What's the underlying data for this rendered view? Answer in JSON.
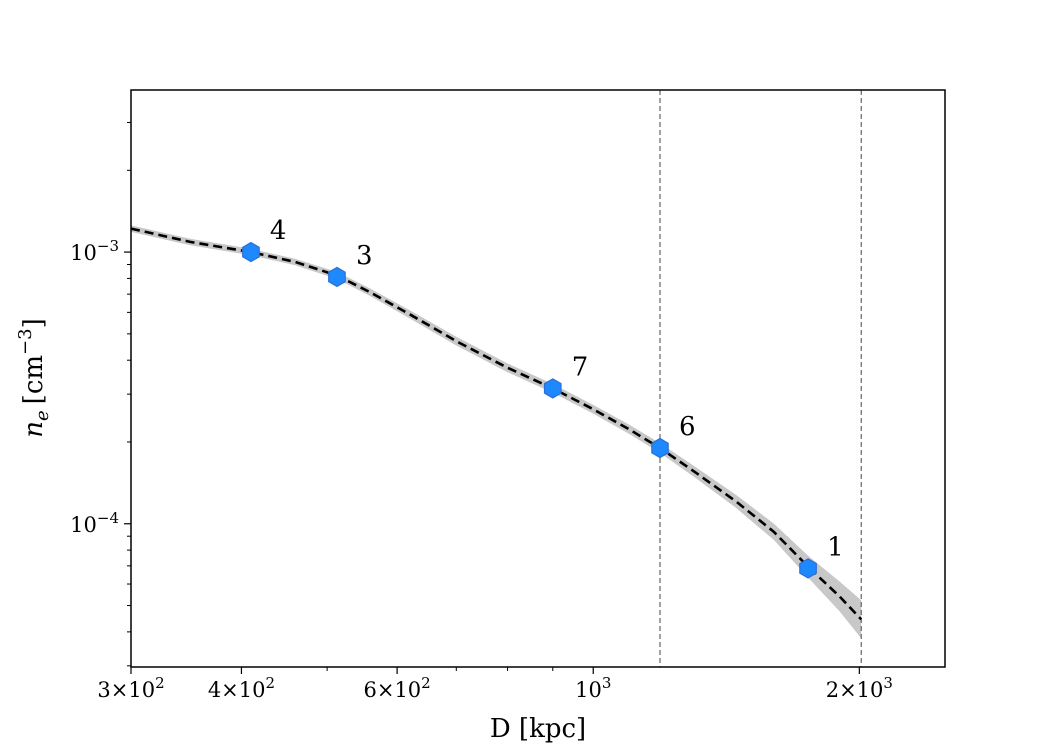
{
  "chart_data": {
    "type": "line",
    "title": "",
    "xlabel": "D [kpc]",
    "ylabel_main": "n",
    "ylabel_sub": "e",
    "ylabel_unit": "[cm",
    "ylabel_unit_exp": "−3",
    "ylabel_unit_close": "]",
    "xscale": "log",
    "yscale": "log",
    "xlim": [
      300,
      2500
    ],
    "ylim": [
      2.97e-05,
      0.00395
    ],
    "grid": false,
    "x_tick_labels": [
      {
        "value": 300,
        "mant": "3",
        "exp": "2"
      },
      {
        "value": 400,
        "mant": "4",
        "exp": "2"
      },
      {
        "value": 600,
        "mant": "6",
        "exp": "2"
      },
      {
        "value": 1000,
        "mant": "",
        "exp": "3"
      },
      {
        "value": 2000,
        "mant": "2",
        "exp": "3"
      }
    ],
    "x_minor_ticks": [
      500,
      700,
      800,
      900
    ],
    "y_tick_labels": [
      {
        "value": 0.001,
        "exp": "−3"
      },
      {
        "value": 0.0001,
        "exp": "−4"
      }
    ],
    "y_minor_ticks": [
      3e-05,
      4e-05,
      5e-05,
      6e-05,
      7e-05,
      8e-05,
      9e-05,
      0.0002,
      0.0003,
      0.0004,
      0.0005,
      0.0006,
      0.0007,
      0.0008,
      0.0009,
      0.002,
      0.003
    ],
    "vlines": [
      1190,
      2010
    ],
    "fit_curve": {
      "x": [
        300,
        350,
        410,
        460,
        513,
        560,
        620,
        700,
        800,
        900,
        1000,
        1100,
        1190,
        1300,
        1450,
        1600,
        1750,
        1900,
        2010
      ],
      "y": [
        0.00122,
        0.00109,
        0.001,
        0.00092,
        0.00082,
        0.00071,
        0.00059,
        0.00047,
        0.000375,
        0.000315,
        0.000264,
        0.000222,
        0.00019,
        0.000156,
        0.000121,
        9.35e-05,
        6.95e-05,
        5.4e-05,
        4.45e-05
      ],
      "band_half_width_dex": [
        0.012,
        0.012,
        0.012,
        0.012,
        0.013,
        0.014,
        0.015,
        0.016,
        0.016,
        0.016,
        0.016,
        0.017,
        0.018,
        0.02,
        0.024,
        0.03,
        0.04,
        0.055,
        0.07
      ]
    },
    "points": [
      {
        "label": "4",
        "x": 410,
        "y": 0.001
      },
      {
        "label": "3",
        "x": 513,
        "y": 0.00081
      },
      {
        "label": "7",
        "x": 900,
        "y": 0.000315
      },
      {
        "label": "6",
        "x": 1190,
        "y": 0.00019
      },
      {
        "label": "1",
        "x": 1750,
        "y": 6.85e-05
      }
    ],
    "colors": {
      "point": "#1e88ff",
      "point_edge": "#2b6fd6",
      "curve": "#000000",
      "band": "#c8c8c8",
      "vline": "#666666"
    }
  }
}
